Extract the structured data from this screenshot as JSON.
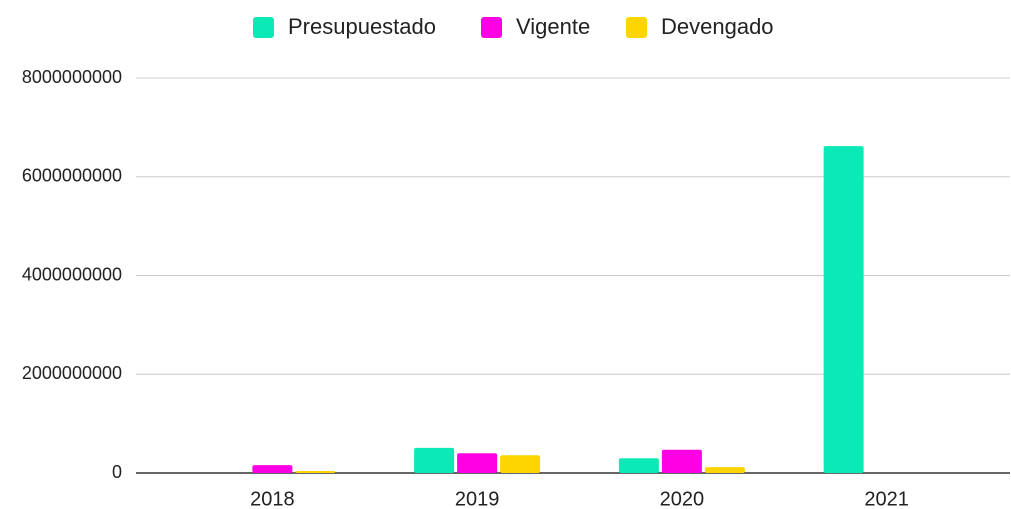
{
  "chart_data": {
    "type": "bar",
    "categories": [
      "2018",
      "2019",
      "2020",
      "2021"
    ],
    "series": [
      {
        "name": "Presupuestado",
        "color": "#0beab6",
        "values": [
          0,
          510000000,
          300000000,
          6620000000
        ]
      },
      {
        "name": "Vigente",
        "color": "#ff00e4",
        "values": [
          160000000,
          400000000,
          470000000,
          0
        ]
      },
      {
        "name": "Devengado",
        "color": "#ffd500",
        "values": [
          40000000,
          360000000,
          120000000,
          0
        ]
      }
    ],
    "ylim": [
      0,
      8000000000
    ],
    "yticks": [
      0,
      2000000000,
      4000000000,
      6000000000,
      8000000000
    ],
    "grid": true,
    "legend": "top"
  }
}
